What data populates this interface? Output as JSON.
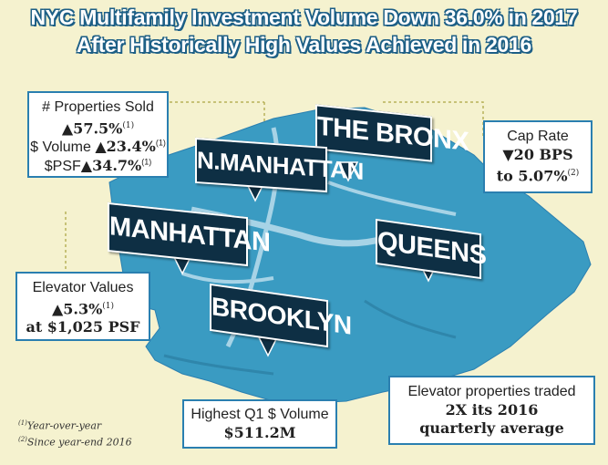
{
  "title": {
    "line1": "NYC Multifamily Investment Volume Down 36.0% in 2017",
    "line2": "After Historically High Values Achieved in 2016"
  },
  "map_labels": {
    "bronx": "THE BRONX",
    "n_manhattan": "N.MANHATTAN",
    "manhattan": "MANHATTAN",
    "queens": "QUEENS",
    "brooklyn": "BROOKLYN"
  },
  "properties_box": {
    "line1": "# Properties Sold",
    "line2_value": "▲57.5%",
    "line2_sup": "(1)",
    "line3_label": "$ Volume",
    "line3_value": "▲23.4%",
    "line3_sup": "(1)",
    "line4_label": "$PSF",
    "line4_value": "▲34.7%",
    "line4_sup": "(1)"
  },
  "cap_rate_box": {
    "line1": "Cap Rate",
    "line2": "▼20 BPS",
    "line3": "to 5.07%",
    "line3_sup": "(2)"
  },
  "elevator_box": {
    "line1": "Elevator Values",
    "line2": "▲5.3%",
    "line2_sup": "(1)",
    "line3": "at $1,025 PSF"
  },
  "highest_box": {
    "line1": "Highest Q1 $ Volume",
    "line2": "$511.2M"
  },
  "elevator_traded_box": {
    "line1": "Elevator properties traded",
    "line2": "2X its 2016",
    "line3": "quarterly average"
  },
  "footnotes": {
    "note1_marker": "(1)",
    "note1_text": "Year-over-year",
    "note2_marker": "(2)",
    "note2_text": "Since year-end 2016"
  },
  "colors": {
    "background": "#f5f2cf",
    "water_land": "#3a9bc2",
    "label_bg": "#0e2f44",
    "box_border": "#2a7fb0",
    "title_outline": "#1d5f86"
  }
}
